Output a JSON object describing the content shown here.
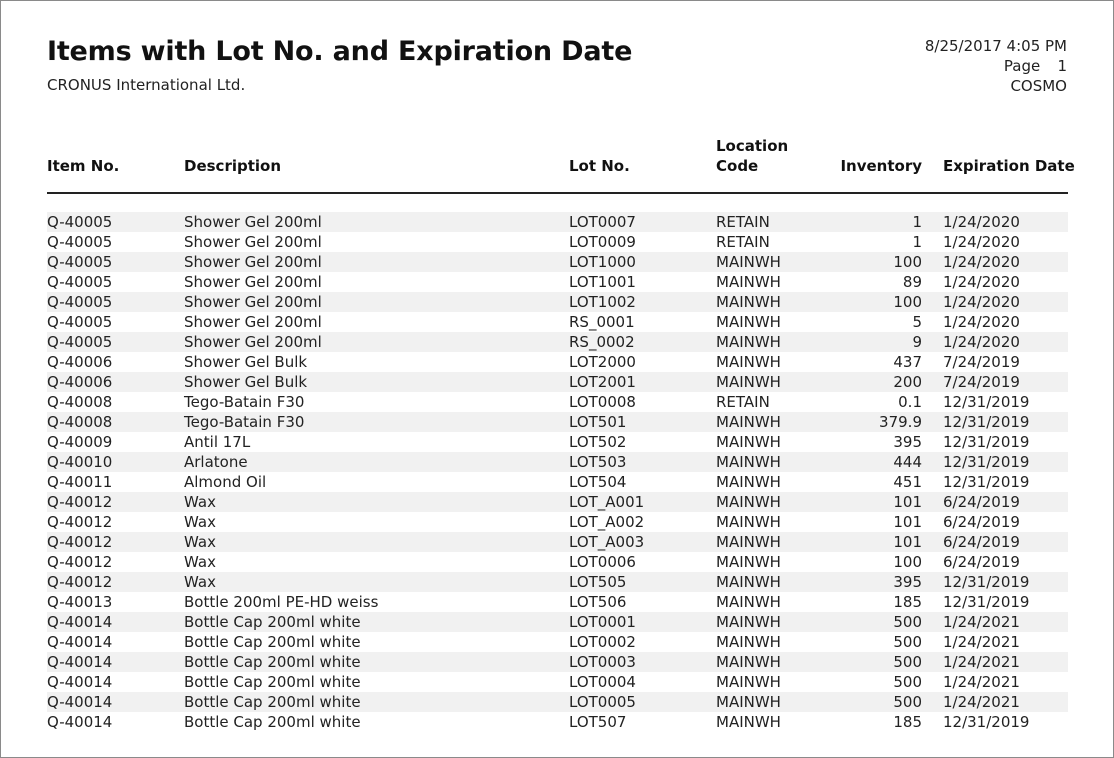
{
  "report": {
    "title": "Items with Lot No. and Expiration Date",
    "company": "CRONUS International Ltd.",
    "datetime": "8/25/2017 4:05 PM",
    "page_label": "Page",
    "page_number": "1",
    "user": "COSMO"
  },
  "columns": {
    "item_no": "Item No.",
    "description": "Description",
    "lot_no": "Lot No.",
    "location_code_line1": "Location",
    "location_code_line2": "Code",
    "inventory": "Inventory",
    "expiration_date": "Expiration Date"
  },
  "rows": [
    {
      "item_no": "Q-40005",
      "description": "Shower Gel 200ml",
      "lot_no": "LOT0007",
      "location": "RETAIN",
      "inventory": "1",
      "expiration": "1/24/2020"
    },
    {
      "item_no": "Q-40005",
      "description": "Shower Gel 200ml",
      "lot_no": "LOT0009",
      "location": "RETAIN",
      "inventory": "1",
      "expiration": "1/24/2020"
    },
    {
      "item_no": "Q-40005",
      "description": "Shower Gel 200ml",
      "lot_no": "LOT1000",
      "location": "MAINWH",
      "inventory": "100",
      "expiration": "1/24/2020"
    },
    {
      "item_no": "Q-40005",
      "description": "Shower Gel 200ml",
      "lot_no": "LOT1001",
      "location": "MAINWH",
      "inventory": "89",
      "expiration": "1/24/2020"
    },
    {
      "item_no": "Q-40005",
      "description": "Shower Gel 200ml",
      "lot_no": "LOT1002",
      "location": "MAINWH",
      "inventory": "100",
      "expiration": "1/24/2020"
    },
    {
      "item_no": "Q-40005",
      "description": "Shower Gel 200ml",
      "lot_no": "RS_0001",
      "location": "MAINWH",
      "inventory": "5",
      "expiration": "1/24/2020"
    },
    {
      "item_no": "Q-40005",
      "description": "Shower Gel 200ml",
      "lot_no": "RS_0002",
      "location": "MAINWH",
      "inventory": "9",
      "expiration": "1/24/2020"
    },
    {
      "item_no": "Q-40006",
      "description": "Shower Gel Bulk",
      "lot_no": "LOT2000",
      "location": "MAINWH",
      "inventory": "437",
      "expiration": "7/24/2019"
    },
    {
      "item_no": "Q-40006",
      "description": "Shower Gel Bulk",
      "lot_no": "LOT2001",
      "location": "MAINWH",
      "inventory": "200",
      "expiration": "7/24/2019"
    },
    {
      "item_no": "Q-40008",
      "description": "Tego-Batain F30",
      "lot_no": "LOT0008",
      "location": "RETAIN",
      "inventory": "0.1",
      "expiration": "12/31/2019"
    },
    {
      "item_no": "Q-40008",
      "description": "Tego-Batain F30",
      "lot_no": "LOT501",
      "location": "MAINWH",
      "inventory": "379.9",
      "expiration": "12/31/2019"
    },
    {
      "item_no": "Q-40009",
      "description": "Antil 17L",
      "lot_no": "LOT502",
      "location": "MAINWH",
      "inventory": "395",
      "expiration": "12/31/2019"
    },
    {
      "item_no": "Q-40010",
      "description": "Arlatone",
      "lot_no": "LOT503",
      "location": "MAINWH",
      "inventory": "444",
      "expiration": "12/31/2019"
    },
    {
      "item_no": "Q-40011",
      "description": "Almond Oil",
      "lot_no": "LOT504",
      "location": "MAINWH",
      "inventory": "451",
      "expiration": "12/31/2019"
    },
    {
      "item_no": "Q-40012",
      "description": "Wax",
      "lot_no": "LOT_A001",
      "location": "MAINWH",
      "inventory": "101",
      "expiration": "6/24/2019"
    },
    {
      "item_no": "Q-40012",
      "description": "Wax",
      "lot_no": "LOT_A002",
      "location": "MAINWH",
      "inventory": "101",
      "expiration": "6/24/2019"
    },
    {
      "item_no": "Q-40012",
      "description": "Wax",
      "lot_no": "LOT_A003",
      "location": "MAINWH",
      "inventory": "101",
      "expiration": "6/24/2019"
    },
    {
      "item_no": "Q-40012",
      "description": "Wax",
      "lot_no": "LOT0006",
      "location": "MAINWH",
      "inventory": "100",
      "expiration": "6/24/2019"
    },
    {
      "item_no": "Q-40012",
      "description": "Wax",
      "lot_no": "LOT505",
      "location": "MAINWH",
      "inventory": "395",
      "expiration": "12/31/2019"
    },
    {
      "item_no": "Q-40013",
      "description": "Bottle 200ml PE-HD weiss",
      "lot_no": "LOT506",
      "location": "MAINWH",
      "inventory": "185",
      "expiration": "12/31/2019"
    },
    {
      "item_no": "Q-40014",
      "description": "Bottle Cap 200ml white",
      "lot_no": "LOT0001",
      "location": "MAINWH",
      "inventory": "500",
      "expiration": "1/24/2021"
    },
    {
      "item_no": "Q-40014",
      "description": "Bottle Cap 200ml white",
      "lot_no": "LOT0002",
      "location": "MAINWH",
      "inventory": "500",
      "expiration": "1/24/2021"
    },
    {
      "item_no": "Q-40014",
      "description": "Bottle Cap 200ml white",
      "lot_no": "LOT0003",
      "location": "MAINWH",
      "inventory": "500",
      "expiration": "1/24/2021"
    },
    {
      "item_no": "Q-40014",
      "description": "Bottle Cap 200ml white",
      "lot_no": "LOT0004",
      "location": "MAINWH",
      "inventory": "500",
      "expiration": "1/24/2021"
    },
    {
      "item_no": "Q-40014",
      "description": "Bottle Cap 200ml white",
      "lot_no": "LOT0005",
      "location": "MAINWH",
      "inventory": "500",
      "expiration": "1/24/2021"
    },
    {
      "item_no": "Q-40014",
      "description": "Bottle Cap 200ml white",
      "lot_no": "LOT507",
      "location": "MAINWH",
      "inventory": "185",
      "expiration": "12/31/2019"
    }
  ]
}
